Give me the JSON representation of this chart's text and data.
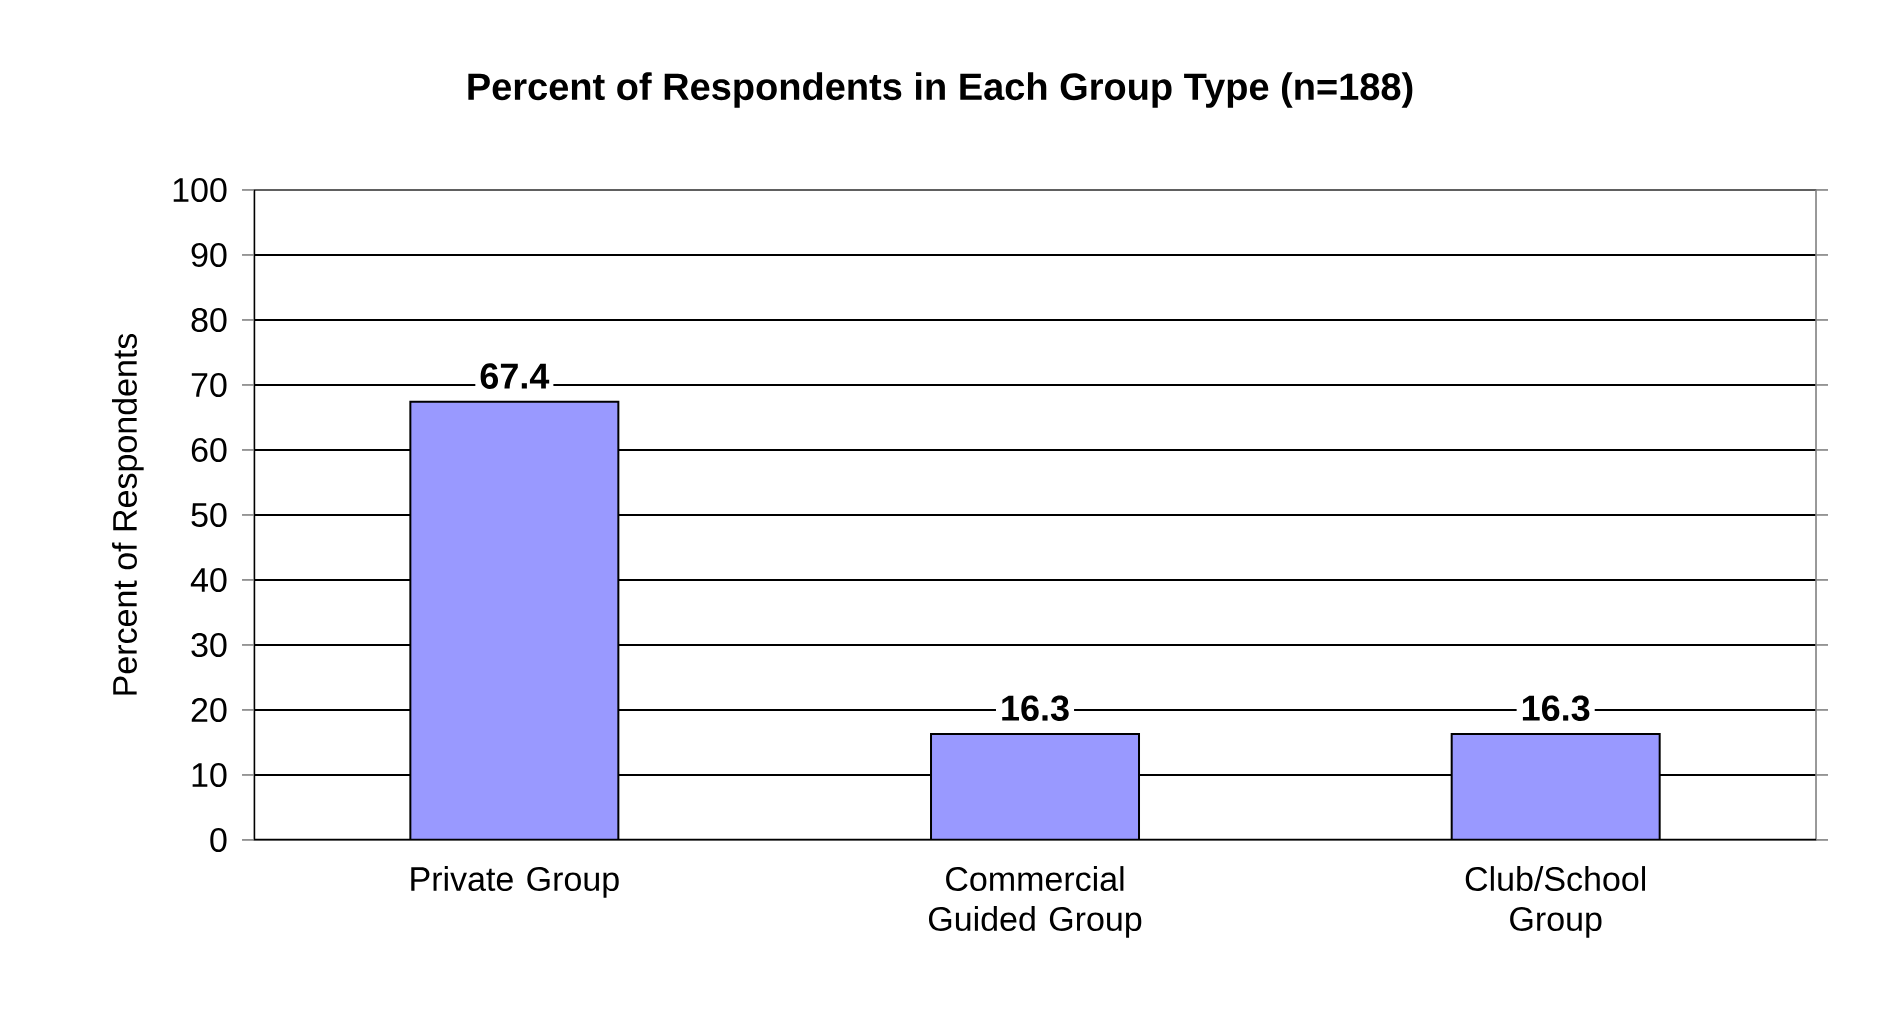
{
  "chart_data": {
    "type": "bar",
    "title": "Percent of Respondents in Each Group Type (n=188)",
    "ylabel": "Percent of Respondents",
    "categories": [
      "Private Group",
      "Commercial Guided Group",
      "Club/School Group"
    ],
    "values": [
      67.4,
      16.3,
      16.3
    ],
    "color": "#9999ff",
    "ylim": [
      0,
      100
    ],
    "yticks": [
      0,
      10,
      20,
      30,
      40,
      50,
      60,
      70,
      80,
      90,
      100
    ],
    "grid": "y",
    "data_labels": true
  }
}
